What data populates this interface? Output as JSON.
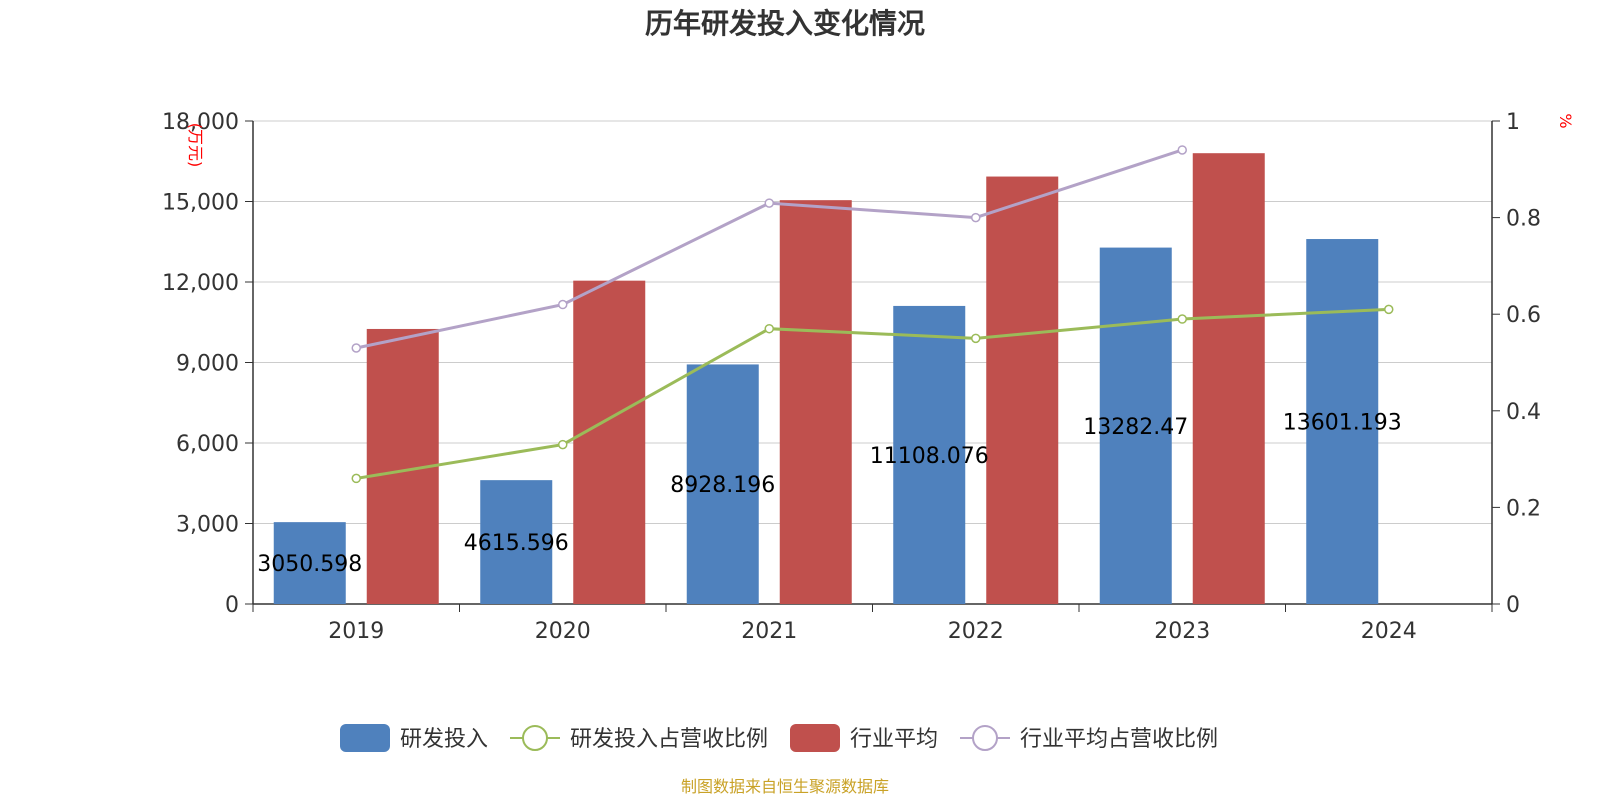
{
  "chart_data": {
    "type": "bar",
    "title": "历年研发投入变化情况",
    "categories": [
      "2019",
      "2020",
      "2021",
      "2022",
      "2023",
      "2024"
    ],
    "left_axis": {
      "unit": "(万元)",
      "min": 0,
      "max": 18000,
      "interval": 3000,
      "tick_labels": [
        "0",
        "3,000",
        "6,000",
        "9,000",
        "12,000",
        "15,000",
        "18,000"
      ]
    },
    "right_axis": {
      "unit": "%",
      "min": 0,
      "max": 1,
      "interval": 0.2,
      "tick_labels": [
        "0",
        "0.2",
        "0.4",
        "0.6",
        "0.8",
        "1"
      ]
    },
    "grid": true,
    "legend_position": "bottom-center",
    "series": [
      {
        "name": "研发投入",
        "kind": "bar",
        "axis": "left",
        "color": "#4f81bd",
        "values": [
          3050.598,
          4615.596,
          8928.196,
          11108.076,
          13282.47,
          13601.193
        ],
        "data_labels": [
          "3050.598",
          "4615.596",
          "8928.196",
          "11108.076",
          "13282.47",
          "13601.193"
        ]
      },
      {
        "name": "研发投入占营收比例",
        "kind": "line",
        "axis": "right",
        "color": "#9bbb59",
        "values": [
          0.26,
          0.33,
          0.57,
          0.55,
          0.59,
          0.61
        ]
      },
      {
        "name": "行业平均",
        "kind": "bar",
        "axis": "left",
        "color": "#c0504d",
        "values": [
          10250,
          12050,
          15050,
          15930,
          16800,
          null
        ]
      },
      {
        "name": "行业平均占营收比例",
        "kind": "line",
        "axis": "right",
        "color": "#b3a2c7",
        "values": [
          0.53,
          0.62,
          0.83,
          0.8,
          0.94,
          null
        ]
      }
    ]
  },
  "source_note": "制图数据来自恒生聚源数据库"
}
